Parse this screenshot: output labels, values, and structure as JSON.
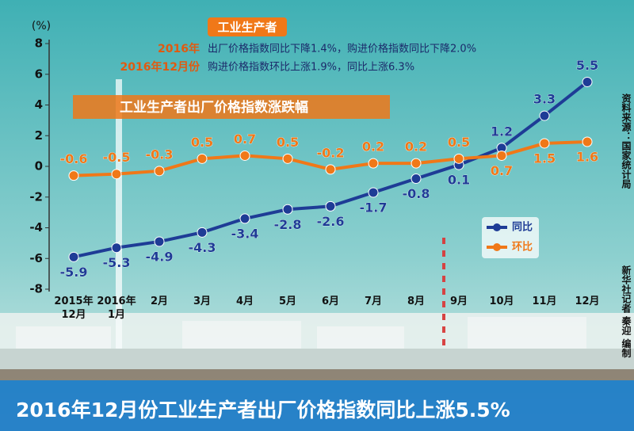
{
  "chart_data": {
    "type": "line",
    "title": "2016年12月份工业生产者出厂价格指数同比上涨5.5%",
    "subtitle": "工业生产者出厂价格指数涨跌幅",
    "header": "工业生产者",
    "notes": [
      {
        "label": "2016年",
        "text": "出厂价格指数同比下降1.4%，购进价格指数同比下降2.0%"
      },
      {
        "label": "2016年12月份",
        "text": "购进价格指数环比上涨1.9%，同比上涨6.3%"
      }
    ],
    "y_label": "(%)",
    "source": "资料来源：国家统计局",
    "credit": "新华社记者 秦迎 编制",
    "categories": [
      "2015年\n12月",
      "2016年\n1月",
      "2月",
      "3月",
      "4月",
      "5月",
      "6月",
      "7月",
      "8月",
      "9月",
      "10月",
      "11月",
      "12月"
    ],
    "series": [
      {
        "name": "同比",
        "color": "#1e3c96",
        "values": [
          -5.9,
          -5.3,
          -4.9,
          -4.3,
          -3.4,
          -2.8,
          -2.6,
          -1.7,
          -0.8,
          0.1,
          1.2,
          3.3,
          5.5
        ]
      },
      {
        "name": "环比",
        "color": "#f07818",
        "values": [
          -0.6,
          -0.5,
          -0.3,
          0.5,
          0.7,
          0.5,
          -0.2,
          0.2,
          0.2,
          0.5,
          0.7,
          1.5,
          1.6
        ]
      }
    ],
    "ylim": [
      -8,
      8
    ],
    "yticks": [
      -8,
      -6,
      -4,
      -2,
      0,
      2,
      4,
      6,
      8
    ],
    "legend": "right"
  }
}
